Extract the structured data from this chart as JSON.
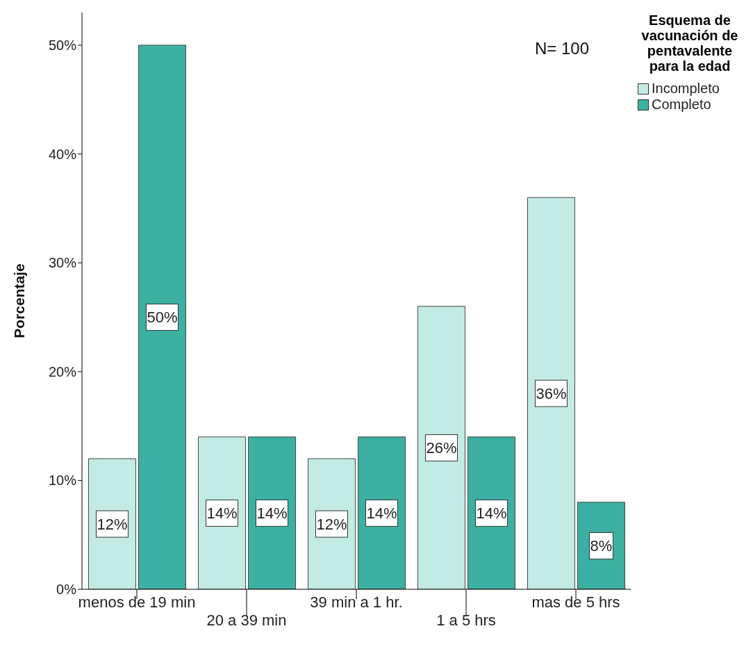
{
  "chart_data": {
    "type": "bar",
    "ylabel": "Porcentaje",
    "legend_title": "Esquema de vacunación de pentavalente para la edad",
    "annotations": [
      "N= 100"
    ],
    "categories": [
      "menos de 19 min",
      "20 a 39 min",
      "39 min a 1 hr.",
      "1 a 5 hrs",
      "mas de 5 hrs"
    ],
    "series": [
      {
        "name": "Incompleto",
        "color": "#c2ebe4",
        "values": [
          12,
          14,
          12,
          26,
          36
        ],
        "value_labels": [
          "12%",
          "14%",
          "12%",
          "26%",
          "36%"
        ]
      },
      {
        "name": "Completo",
        "color": "#3cb0a2",
        "values": [
          50,
          14,
          14,
          14,
          8
        ],
        "value_labels": [
          "50%",
          "14%",
          "14%",
          "14%",
          "8%"
        ]
      }
    ],
    "ylim": [
      0,
      53
    ],
    "yticks": [
      {
        "value": 0,
        "label": "0%"
      },
      {
        "value": 10,
        "label": "10%"
      },
      {
        "value": 20,
        "label": "20%"
      },
      {
        "value": 30,
        "label": "30%"
      },
      {
        "value": 40,
        "label": "40%"
      },
      {
        "value": 50,
        "label": "50%"
      }
    ],
    "grid": false,
    "legend": "top right"
  }
}
